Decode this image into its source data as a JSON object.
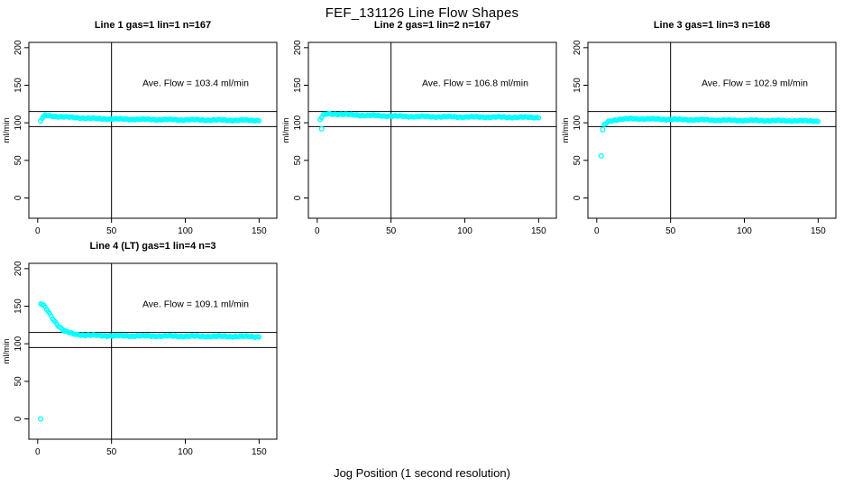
{
  "title": "FEF_131126  Line Flow Shapes",
  "xlabel": "Jog Position (1 second resolution)",
  "colors": {
    "marker": "#00FFFF",
    "axis": "#000000",
    "background": "#FFFFFF",
    "text": "#000000"
  },
  "chart_data": {
    "type": "scatter",
    "layout": "2x3 grid, 4 panels used (top row: lines 1-3, bottom-left: line 4)",
    "grid": false,
    "legend": "none",
    "marker_style": "open circle",
    "ylabel": "ml/min",
    "xticks": [
      0,
      50,
      100,
      150
    ],
    "yticks": [
      0,
      50,
      100,
      150,
      200
    ],
    "xlim": [
      -6,
      162
    ],
    "ylim": [
      -27,
      207
    ],
    "panels": [
      {
        "title": "Line 1 gas=1 lin=1 n=167",
        "gas": 1,
        "lin": 1,
        "n": 167,
        "ave_flow": 103.4,
        "annotation": "Ave. Flow =  103.4  ml/min",
        "annotation_pos": [
          107,
          149
        ],
        "vline_x": 50,
        "hlines": [
          95,
          115
        ],
        "series": {
          "name": "flow_ml_min",
          "x_range": [
            3,
            150
          ],
          "x_step": 1,
          "keypoints": [
            [
              3,
              106
            ],
            [
              5,
              109.5
            ],
            [
              10,
              109
            ],
            [
              20,
              107.5
            ],
            [
              40,
              105.5
            ],
            [
              70,
              104.5
            ],
            [
              110,
              103.8
            ],
            [
              150,
              103.2
            ]
          ]
        },
        "outliers": [
          [
            2,
            102.5
          ]
        ]
      },
      {
        "title": "Line 2 gas=1 lin=2 n=167",
        "gas": 1,
        "lin": 2,
        "n": 167,
        "ave_flow": 106.8,
        "annotation": "Ave. Flow =  106.8  ml/min",
        "annotation_pos": [
          107,
          149
        ],
        "vline_x": 50,
        "hlines": [
          95,
          115
        ],
        "series": {
          "name": "flow_ml_min",
          "x_range": [
            2,
            150
          ],
          "x_step": 1,
          "keypoints": [
            [
              2,
              104
            ],
            [
              4,
              110
            ],
            [
              7,
              112
            ],
            [
              15,
              111.5
            ],
            [
              30,
              110
            ],
            [
              60,
              108.5
            ],
            [
              100,
              107.8
            ],
            [
              150,
              107.2
            ]
          ]
        },
        "outliers": [
          [
            3,
            92
          ]
        ]
      },
      {
        "title": "Line 3 gas=1 lin=3 n=168",
        "gas": 1,
        "lin": 3,
        "n": 168,
        "ave_flow": 102.9,
        "annotation": "Ave. Flow =  102.9  ml/min",
        "annotation_pos": [
          107,
          149
        ],
        "vline_x": 50,
        "hlines": [
          95,
          115
        ],
        "series": {
          "name": "flow_ml_min",
          "x_range": [
            5,
            150
          ],
          "x_step": 1,
          "keypoints": [
            [
              5,
              97
            ],
            [
              8,
              102
            ],
            [
              14,
              104.5
            ],
            [
              25,
              105.5
            ],
            [
              50,
              104.5
            ],
            [
              90,
              103.3
            ],
            [
              150,
              102.4
            ]
          ]
        },
        "outliers": [
          [
            3,
            56
          ],
          [
            4,
            91
          ]
        ]
      },
      {
        "title": "Line 4 (LT) gas=1 lin=4 n=3",
        "gas": 1,
        "lin": 4,
        "n": 3,
        "ave_flow": 109.1,
        "annotation": "Ave. Flow =  109.1  ml/min",
        "annotation_pos": [
          107,
          149
        ],
        "vline_x": 50,
        "hlines": [
          95,
          115
        ],
        "series": {
          "name": "flow_ml_min",
          "x_range": [
            2,
            150
          ],
          "x_step": 1,
          "keypoints": [
            [
              2,
              153
            ],
            [
              4,
              151
            ],
            [
              7,
              143
            ],
            [
              10,
              134
            ],
            [
              14,
              124
            ],
            [
              18,
              117
            ],
            [
              24,
              113
            ],
            [
              32,
              111.5
            ],
            [
              50,
              110.5
            ],
            [
              100,
              110
            ],
            [
              150,
              109.5
            ]
          ]
        },
        "outliers": [
          [
            2,
            0
          ]
        ]
      }
    ]
  }
}
